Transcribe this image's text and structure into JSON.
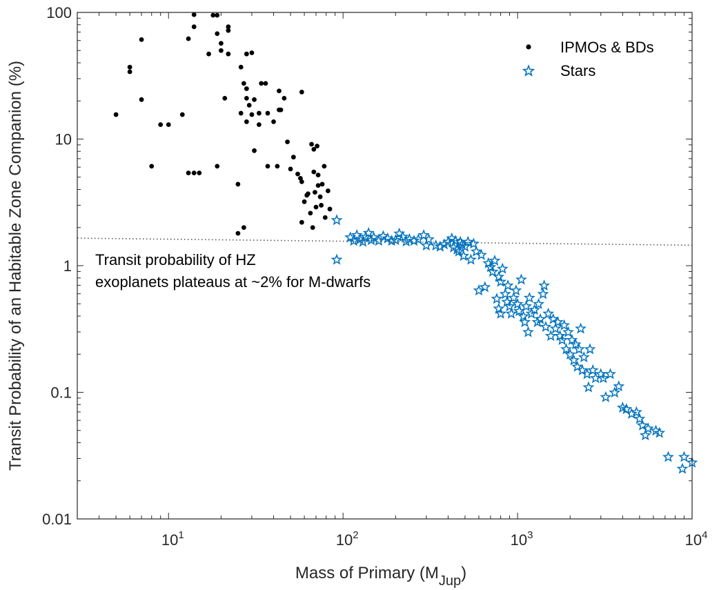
{
  "chart_data": {
    "type": "scatter",
    "title": "",
    "xscale": "log",
    "yscale": "log",
    "xlim": [
      3,
      10000
    ],
    "ylim": [
      0.01,
      100
    ],
    "xticks": [
      {
        "value": 10,
        "base": "10",
        "exp": "1"
      },
      {
        "value": 100,
        "base": "10",
        "exp": "2"
      },
      {
        "value": 1000,
        "base": "10",
        "exp": "3"
      },
      {
        "value": 10000,
        "base": "10",
        "exp": "4"
      }
    ],
    "yticks": [
      {
        "value": 0.01,
        "label": "0.01"
      },
      {
        "value": 0.1,
        "label": "0.1"
      },
      {
        "value": 1,
        "label": "1"
      },
      {
        "value": 10,
        "label": "10"
      },
      {
        "value": 100,
        "label": "100"
      }
    ],
    "xlabel_main": "Mass of Primary (M",
    "xlabel_sub": "Jup",
    "xlabel_end": ")",
    "ylabel": "Transit Probability of an Habitable Zone Companion (%)",
    "legend": {
      "position": "top-right",
      "entries": [
        {
          "label": "IPMOs & BDs",
          "marker": "dot",
          "color": "#000000"
        },
        {
          "label": "Stars",
          "marker": "star",
          "color": "#0072BD"
        }
      ]
    },
    "annotation": {
      "lines": [
        "Transit probability of HZ",
        "exoplanets plateaus at ~2% for M-dwarfs"
      ]
    },
    "reference_line": {
      "style": "dotted",
      "color": "#555555",
      "x": [
        3,
        10000
      ],
      "y": [
        1.65,
        1.45
      ]
    },
    "series": [
      {
        "name": "IPMOs & BDs",
        "marker": "dot",
        "color": "#000000",
        "points": [
          [
            5,
            15.6
          ],
          [
            6,
            37
          ],
          [
            6,
            34
          ],
          [
            7,
            61
          ],
          [
            7,
            20.5
          ],
          [
            8,
            6.1
          ],
          [
            9,
            13
          ],
          [
            10,
            13
          ],
          [
            12,
            15.6
          ],
          [
            13,
            62
          ],
          [
            13,
            5.4
          ],
          [
            14,
            96
          ],
          [
            14,
            77
          ],
          [
            14,
            5.4
          ],
          [
            15,
            5.4
          ],
          [
            17,
            47
          ],
          [
            18,
            95
          ],
          [
            19,
            95
          ],
          [
            19,
            68
          ],
          [
            19,
            6.1
          ],
          [
            20,
            57
          ],
          [
            20,
            50
          ],
          [
            21,
            21
          ],
          [
            22,
            77
          ],
          [
            22,
            72
          ],
          [
            22,
            47
          ],
          [
            25,
            4.4
          ],
          [
            25,
            1.8
          ],
          [
            26,
            37
          ],
          [
            26,
            16
          ],
          [
            27,
            2
          ],
          [
            27,
            27.5
          ],
          [
            28,
            47
          ],
          [
            28,
            25
          ],
          [
            28,
            21
          ],
          [
            28,
            13.7
          ],
          [
            29,
            18.5
          ],
          [
            30,
            48
          ],
          [
            30,
            15.6
          ],
          [
            31,
            8.1
          ],
          [
            31,
            20.5
          ],
          [
            33,
            13
          ],
          [
            33,
            16
          ],
          [
            34,
            27.5
          ],
          [
            36,
            27.5
          ],
          [
            37,
            6.1
          ],
          [
            37,
            16
          ],
          [
            40,
            13.7
          ],
          [
            42,
            6.1
          ],
          [
            43,
            24
          ],
          [
            43,
            17
          ],
          [
            44,
            17
          ],
          [
            46,
            21
          ],
          [
            48,
            9.5
          ],
          [
            50,
            5.8
          ],
          [
            52,
            7.2
          ],
          [
            55,
            5.3
          ],
          [
            57,
            4.9
          ],
          [
            58,
            23.5
          ],
          [
            58,
            4.6
          ],
          [
            58,
            2.2
          ],
          [
            60,
            3.2
          ],
          [
            62,
            3.6
          ],
          [
            63,
            3.7
          ],
          [
            65,
            2.6
          ],
          [
            66,
            9.1
          ],
          [
            67,
            2
          ],
          [
            68,
            8.3
          ],
          [
            68,
            5.5
          ],
          [
            69,
            3.8
          ],
          [
            70,
            2.9
          ],
          [
            71,
            8.8
          ],
          [
            72,
            5.2
          ],
          [
            72,
            4.3
          ],
          [
            74,
            3.5
          ],
          [
            75,
            3
          ],
          [
            76,
            4.4
          ],
          [
            78,
            6.1
          ],
          [
            79,
            2.4
          ],
          [
            82,
            3.9
          ],
          [
            84,
            2.8
          ]
        ]
      },
      {
        "name": "Stars",
        "marker": "star",
        "color": "#0072BD",
        "points": [
          [
            92,
            2.3
          ],
          [
            92,
            1.12
          ],
          [
            110,
            1.68
          ],
          [
            115,
            1.58
          ],
          [
            120,
            1.75
          ],
          [
            125,
            1.62
          ],
          [
            130,
            1.55
          ],
          [
            135,
            1.7
          ],
          [
            140,
            1.82
          ],
          [
            145,
            1.6
          ],
          [
            150,
            1.68
          ],
          [
            160,
            1.58
          ],
          [
            170,
            1.72
          ],
          [
            180,
            1.65
          ],
          [
            190,
            1.58
          ],
          [
            200,
            1.6
          ],
          [
            210,
            1.8
          ],
          [
            220,
            1.7
          ],
          [
            230,
            1.56
          ],
          [
            240,
            1.63
          ],
          [
            255,
            1.58
          ],
          [
            270,
            1.62
          ],
          [
            290,
            1.75
          ],
          [
            300,
            1.45
          ],
          [
            310,
            1.62
          ],
          [
            340,
            1.45
          ],
          [
            360,
            1.42
          ],
          [
            380,
            1.48
          ],
          [
            400,
            1.55
          ],
          [
            420,
            1.65
          ],
          [
            430,
            1.4
          ],
          [
            440,
            1.58
          ],
          [
            450,
            1.35
          ],
          [
            460,
            1.3
          ],
          [
            470,
            1.55
          ],
          [
            480,
            1.48
          ],
          [
            490,
            1.2
          ],
          [
            500,
            1.42
          ],
          [
            520,
            1.55
          ],
          [
            540,
            1.12
          ],
          [
            560,
            1.5
          ],
          [
            580,
            1.3
          ],
          [
            600,
            0.64
          ],
          [
            620,
            1.22
          ],
          [
            650,
            0.68
          ],
          [
            680,
            1.05
          ],
          [
            700,
            0.98
          ],
          [
            720,
            0.9
          ],
          [
            740,
            1.1
          ],
          [
            760,
            0.55
          ],
          [
            780,
            0.82
          ],
          [
            780,
            0.46
          ],
          [
            800,
            0.75
          ],
          [
            800,
            0.42
          ],
          [
            820,
            0.95
          ],
          [
            850,
            0.6
          ],
          [
            870,
            0.52
          ],
          [
            880,
            0.7
          ],
          [
            900,
            0.48
          ],
          [
            920,
            0.42
          ],
          [
            950,
            0.56
          ],
          [
            980,
            0.64
          ],
          [
            1000,
            0.5
          ],
          [
            1020,
            0.44
          ],
          [
            1050,
            0.78
          ],
          [
            1080,
            0.4
          ],
          [
            1100,
            0.36
          ],
          [
            1120,
            0.48
          ],
          [
            1150,
            0.3
          ],
          [
            1170,
            0.56
          ],
          [
            1200,
            0.42
          ],
          [
            1250,
            0.45
          ],
          [
            1300,
            0.36
          ],
          [
            1320,
            0.5
          ],
          [
            1350,
            0.38
          ],
          [
            1400,
            0.6
          ],
          [
            1420,
            0.7
          ],
          [
            1450,
            0.33
          ],
          [
            1500,
            0.42
          ],
          [
            1550,
            0.28
          ],
          [
            1600,
            0.38
          ],
          [
            1650,
            0.32
          ],
          [
            1700,
            0.36
          ],
          [
            1750,
            0.28
          ],
          [
            1800,
            0.26
          ],
          [
            1850,
            0.34
          ],
          [
            1900,
            0.22
          ],
          [
            1950,
            0.3
          ],
          [
            2000,
            0.2
          ],
          [
            2050,
            0.26
          ],
          [
            2100,
            0.18
          ],
          [
            2150,
            0.24
          ],
          [
            2200,
            0.16
          ],
          [
            2250,
            0.22
          ],
          [
            2300,
            0.32
          ],
          [
            2350,
            0.15
          ],
          [
            2400,
            0.19
          ],
          [
            2500,
            0.14
          ],
          [
            2550,
            0.11
          ],
          [
            2600,
            0.22
          ],
          [
            2700,
            0.15
          ],
          [
            2800,
            0.13
          ],
          [
            3000,
            0.14
          ],
          [
            3100,
            0.13
          ],
          [
            3200,
            0.092
          ],
          [
            3400,
            0.14
          ],
          [
            3600,
            0.1
          ],
          [
            3800,
            0.112
          ],
          [
            4000,
            0.076
          ],
          [
            4200,
            0.074
          ],
          [
            4500,
            0.068
          ],
          [
            4800,
            0.07
          ],
          [
            5000,
            0.062
          ],
          [
            5200,
            0.055
          ],
          [
            5400,
            0.046
          ],
          [
            5600,
            0.052
          ],
          [
            6200,
            0.05
          ],
          [
            6500,
            0.048
          ],
          [
            7300,
            0.031
          ],
          [
            8800,
            0.025
          ],
          [
            9000,
            0.031
          ],
          [
            10000,
            0.028
          ]
        ]
      }
    ]
  }
}
